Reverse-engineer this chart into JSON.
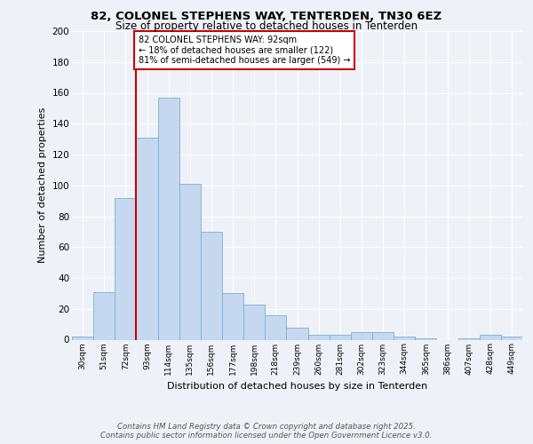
{
  "title_line1": "82, COLONEL STEPHENS WAY, TENTERDEN, TN30 6EZ",
  "title_line2": "Size of property relative to detached houses in Tenterden",
  "xlabel": "Distribution of detached houses by size in Tenterden",
  "ylabel": "Number of detached properties",
  "categories": [
    "30sqm",
    "51sqm",
    "72sqm",
    "93sqm",
    "114sqm",
    "135sqm",
    "156sqm",
    "177sqm",
    "198sqm",
    "218sqm",
    "239sqm",
    "260sqm",
    "281sqm",
    "302sqm",
    "323sqm",
    "344sqm",
    "365sqm",
    "386sqm",
    "407sqm",
    "428sqm",
    "449sqm"
  ],
  "values": [
    2,
    31,
    92,
    131,
    157,
    101,
    70,
    30,
    23,
    16,
    8,
    3,
    3,
    5,
    5,
    2,
    1,
    0,
    1,
    3,
    2
  ],
  "bar_color": "#c5d8ef",
  "bar_edge_color": "#7bafd4",
  "annotation_label": "82 COLONEL STEPHENS WAY: 92sqm",
  "annotation_line2": "← 18% of detached houses are smaller (122)",
  "annotation_line3": "81% of semi-detached houses are larger (549) →",
  "annotation_box_color": "#ffffff",
  "annotation_box_edge_color": "#cc0000",
  "vline_color": "#cc0000",
  "ylim": [
    0,
    200
  ],
  "yticks": [
    0,
    20,
    40,
    60,
    80,
    100,
    120,
    140,
    160,
    180,
    200
  ],
  "footer_line1": "Contains HM Land Registry data © Crown copyright and database right 2025.",
  "footer_line2": "Contains public sector information licensed under the Open Government Licence v3.0.",
  "background_color": "#eef2f8",
  "plot_bg_color": "#eef2f8"
}
